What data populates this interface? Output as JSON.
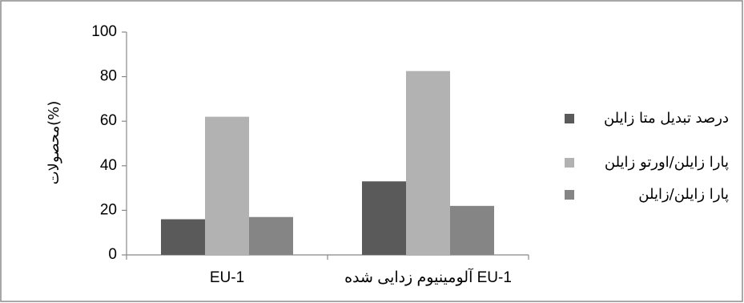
{
  "chart_data": {
    "type": "bar",
    "categories": [
      "EU-1",
      "آلومینیوم زدایی شده EU-1"
    ],
    "series": [
      {
        "name": "درصد تبدیل متا زایلن",
        "values": [
          16,
          33
        ],
        "color": "#5a5a5a"
      },
      {
        "name": "پارا زایلن/اورتو زایلن",
        "values": [
          62,
          82.5
        ],
        "color": "#b2b2b2"
      },
      {
        "name": "پارا زایلن/زایلن",
        "values": [
          17,
          22
        ],
        "color": "#858585"
      }
    ],
    "ylabel": "محصولات(%)",
    "xlabel": "",
    "ylim": [
      0,
      100
    ],
    "yticks": [
      0,
      20,
      40,
      60,
      80,
      100
    ],
    "grid": false,
    "legend": "right"
  }
}
